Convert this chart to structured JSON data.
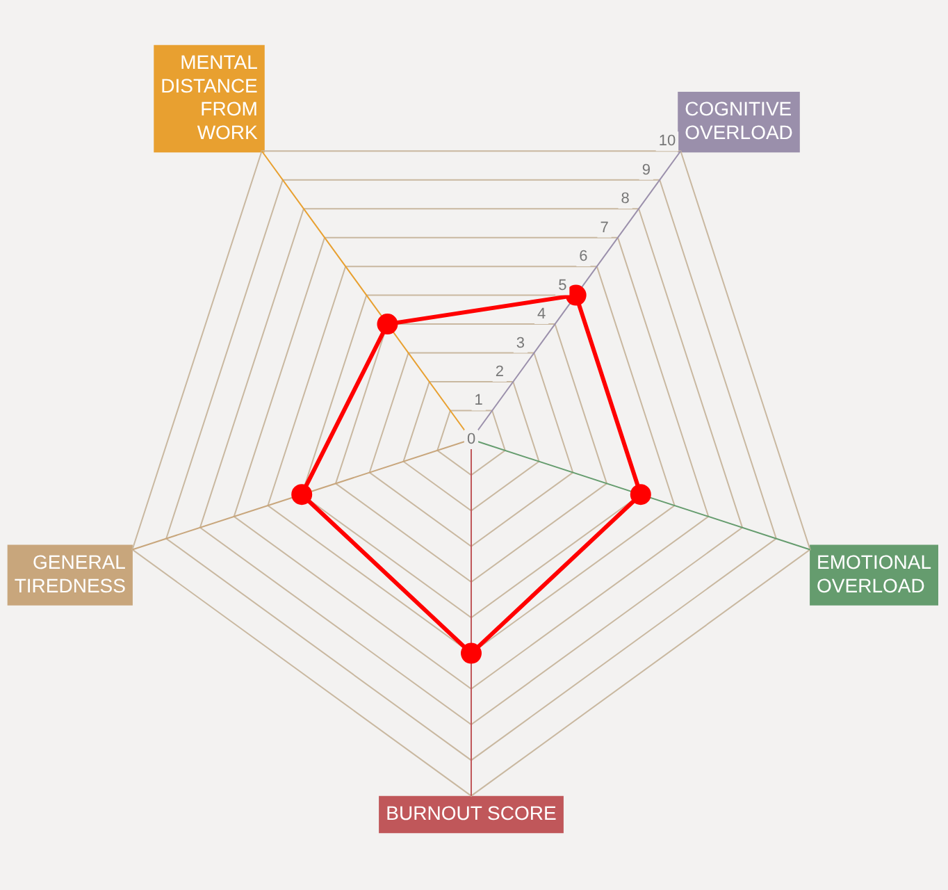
{
  "chart_data": {
    "type": "radar",
    "categories": [
      "COGNITIVE OVERLOAD",
      "EMOTIONAL OVERLOAD",
      "BURNOUT SCORE",
      "GENERAL TIREDNESS",
      "MENTAL DISTANCE FROM WORK"
    ],
    "colors": [
      "#9a8fab",
      "#659c6e",
      "#c0575a",
      "#c8a67c",
      "#e8a030"
    ],
    "series": [
      {
        "color": "#ff0000",
        "values": [
          5,
          5,
          6,
          5,
          4
        ]
      }
    ],
    "ylim": [
      0,
      10
    ],
    "yticks": [
      0,
      1,
      2,
      3,
      4,
      5,
      6,
      7,
      8,
      9,
      10
    ],
    "grid": true,
    "legend": false,
    "marker": "circle",
    "line_style": "solid"
  }
}
